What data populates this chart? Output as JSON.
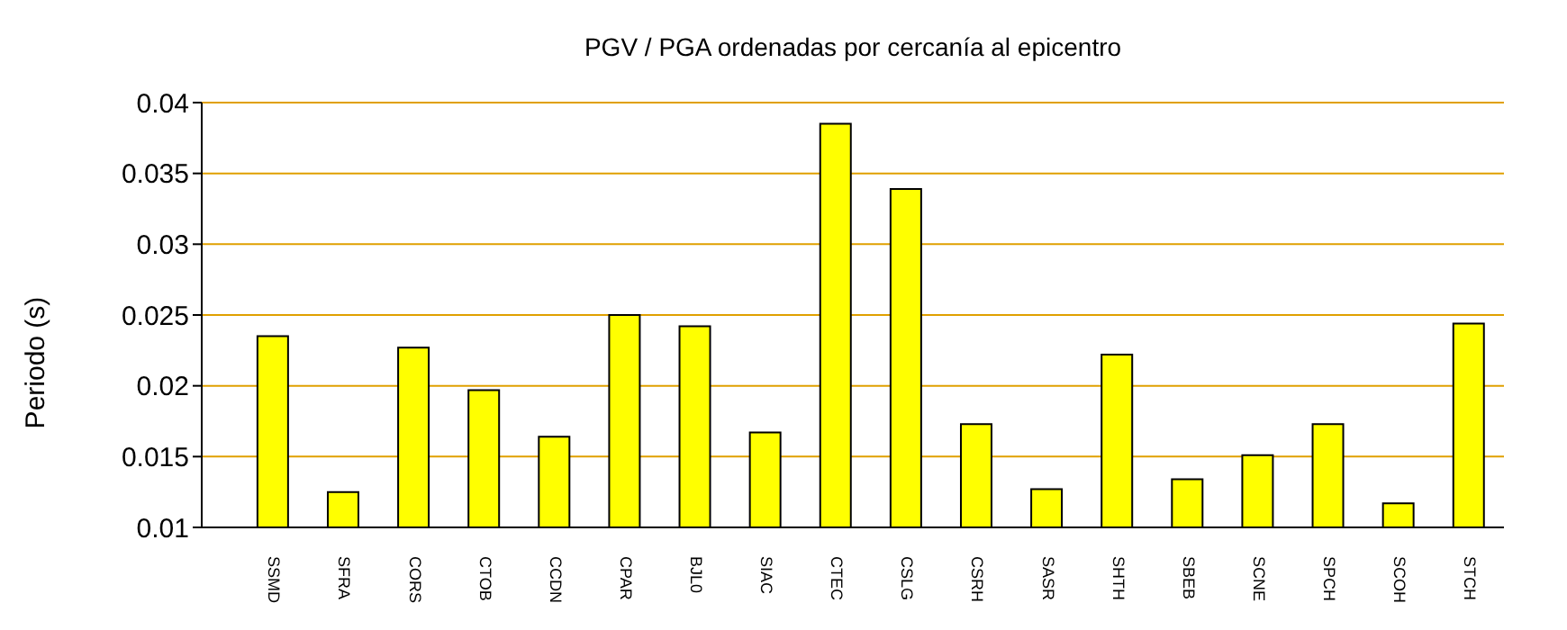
{
  "chart_data": {
    "type": "bar",
    "title": "PGV / PGA ordenadas por cercanía al epicentro",
    "ylabel": "Periodo (s)",
    "categories": [
      "SSMD",
      "SFRA",
      "CORS",
      "CTOB",
      "CCDN",
      "CPAR",
      "BJL0",
      "SIAC",
      "CTEC",
      "CSLG",
      "CSRH",
      "SASR",
      "SHTH",
      "SBEB",
      "SCNE",
      "SPCH",
      "SCOH",
      "STCH"
    ],
    "values": [
      0.0235,
      0.0125,
      0.0227,
      0.0197,
      0.0164,
      0.025,
      0.0242,
      0.0167,
      0.0385,
      0.0339,
      0.0173,
      0.0127,
      0.0222,
      0.0134,
      0.0151,
      0.0173,
      0.0117,
      0.0244
    ],
    "color": "#ffff00",
    "ylim": [
      0.01,
      0.04
    ],
    "yticks": [
      0.01,
      0.015,
      0.02,
      0.025,
      0.03,
      0.035,
      0.04
    ],
    "grid": "y",
    "legend": false
  }
}
